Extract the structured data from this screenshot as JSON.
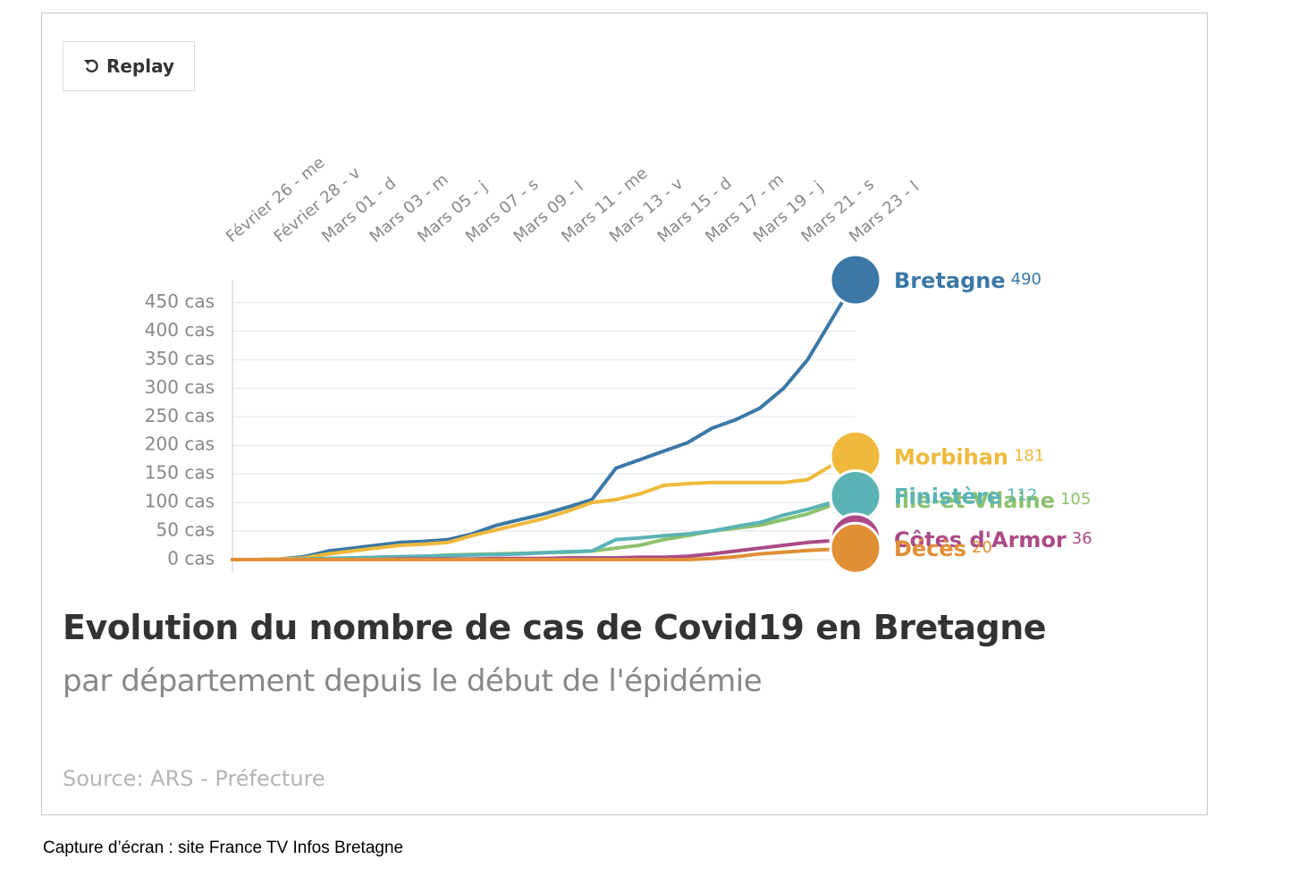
{
  "button": {
    "label": "Replay"
  },
  "caption": "Capture d’écran : site France TV Infos Bretagne",
  "chart_data": {
    "type": "line",
    "title": "Evolution du nombre de cas de Covid19 en Bretagne",
    "subtitle": "par département depuis le début de l'épidémie",
    "source": "Source: ARS - Préfecture",
    "categories": [
      "Février 26 - me",
      null,
      "Février 28 - v",
      null,
      "Mars 01 - d",
      null,
      "Mars 03 - m",
      null,
      "Mars 05 - j",
      null,
      "Mars 07 - s",
      null,
      "Mars 09 - l",
      null,
      "Mars 11 - me",
      null,
      "Mars 13 - v",
      null,
      "Mars 15 - d",
      null,
      "Mars 17 - m",
      null,
      "Mars 19 - j",
      null,
      "Mars 21 - s",
      null,
      "Mars 23 - l"
    ],
    "ylim": [
      0,
      490
    ],
    "yticks": [
      {
        "value": 0,
        "label": "0 cas"
      },
      {
        "value": 50,
        "label": "50 cas"
      },
      {
        "value": 100,
        "label": "100 cas"
      },
      {
        "value": 150,
        "label": "150 cas"
      },
      {
        "value": 200,
        "label": "200 cas"
      },
      {
        "value": 250,
        "label": "250 cas"
      },
      {
        "value": 300,
        "label": "300 cas"
      },
      {
        "value": 350,
        "label": "350 cas"
      },
      {
        "value": 400,
        "label": "400 cas"
      },
      {
        "value": 450,
        "label": "450 cas"
      }
    ],
    "grid": true,
    "series": [
      {
        "name": "Bretagne",
        "color": "#3b78a6",
        "values": [
          0,
          0,
          1,
          5,
          15,
          20,
          25,
          30,
          32,
          35,
          45,
          60,
          70,
          80,
          92,
          105,
          160,
          175,
          190,
          205,
          230,
          245,
          265,
          300,
          350,
          420,
          490
        ]
      },
      {
        "name": "Morbihan",
        "color": "#efb93b",
        "values": [
          0,
          0,
          1,
          3,
          10,
          15,
          20,
          25,
          27,
          30,
          42,
          52,
          62,
          72,
          85,
          100,
          105,
          115,
          130,
          133,
          135,
          135,
          135,
          135,
          140,
          165,
          181
        ]
      },
      {
        "name": "Ille-et-Vilaine",
        "color": "#8cc26e",
        "values": [
          0,
          0,
          0,
          1,
          2,
          3,
          4,
          5,
          6,
          8,
          9,
          10,
          11,
          12,
          13,
          15,
          20,
          25,
          35,
          42,
          50,
          55,
          60,
          70,
          80,
          95,
          105
        ]
      },
      {
        "name": "Finistère",
        "color": "#5bb3b5",
        "values": [
          0,
          0,
          0,
          1,
          2,
          3,
          4,
          5,
          6,
          7,
          8,
          9,
          10,
          12,
          14,
          15,
          35,
          38,
          42,
          45,
          50,
          58,
          65,
          78,
          88,
          100,
          112
        ]
      },
      {
        "name": "Côtes d'Armor",
        "color": "#ab4a87",
        "values": [
          0,
          0,
          0,
          0,
          0,
          0,
          0,
          1,
          1,
          1,
          1,
          2,
          2,
          2,
          3,
          3,
          3,
          4,
          4,
          6,
          10,
          15,
          20,
          25,
          30,
          33,
          36
        ]
      },
      {
        "name": "Décès",
        "color": "#e08f35",
        "values": [
          0,
          0,
          0,
          0,
          0,
          0,
          0,
          0,
          0,
          0,
          0,
          0,
          0,
          0,
          0,
          0,
          0,
          0,
          0,
          0,
          2,
          5,
          10,
          13,
          16,
          18,
          20
        ]
      }
    ]
  }
}
